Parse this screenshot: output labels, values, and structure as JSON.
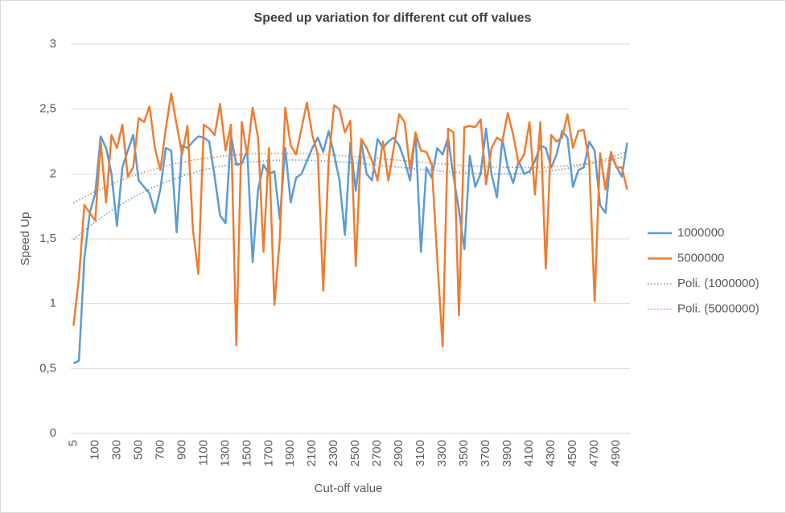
{
  "chart_data": {
    "type": "line",
    "title": "Speed up variation for different cut off values",
    "x_label": "Cut-off value",
    "y_label": "Speed Up",
    "categories": [
      "5",
      null,
      null,
      null,
      "100",
      null,
      null,
      null,
      "300",
      null,
      null,
      null,
      "500",
      null,
      null,
      null,
      "700",
      null,
      null,
      null,
      "900",
      null,
      null,
      null,
      "1100",
      null,
      null,
      null,
      "1300",
      null,
      null,
      null,
      "1500",
      null,
      null,
      null,
      "1700",
      null,
      null,
      null,
      "1900",
      null,
      null,
      null,
      "2100",
      null,
      null,
      null,
      "2300",
      null,
      null,
      null,
      "2500",
      null,
      null,
      null,
      "2700",
      null,
      null,
      null,
      "2900",
      null,
      null,
      null,
      "3100",
      null,
      null,
      null,
      "3300",
      null,
      null,
      null,
      "3500",
      null,
      null,
      null,
      "3700",
      null,
      null,
      null,
      "3900",
      null,
      null,
      null,
      "4100",
      null,
      null,
      null,
      "4300",
      null,
      null,
      null,
      "4500",
      null,
      null,
      null,
      "4700",
      null,
      null,
      null,
      "4900",
      null,
      null
    ],
    "series": [
      {
        "name": "1000000",
        "color": "#5b9bd5",
        "trendline": {
          "type": "polynomial",
          "order": 3,
          "name": "Poli. (1000000)"
        },
        "values": [
          0.54,
          0.56,
          1.35,
          1.7,
          1.85,
          2.29,
          2.2,
          2.0,
          1.6,
          2.05,
          2.18,
          2.3,
          1.95,
          1.9,
          1.85,
          1.7,
          1.88,
          2.2,
          2.18,
          1.55,
          2.22,
          2.2,
          2.25,
          2.29,
          2.28,
          2.25,
          1.98,
          1.68,
          1.62,
          2.3,
          2.07,
          2.08,
          2.18,
          1.32,
          1.88,
          2.07,
          2.0,
          2.02,
          1.65,
          2.2,
          1.78,
          1.97,
          2.0,
          2.1,
          2.2,
          2.28,
          2.17,
          2.33,
          2.15,
          1.95,
          1.53,
          2.24,
          1.87,
          2.25,
          2.0,
          1.95,
          2.27,
          2.2,
          2.25,
          2.28,
          2.22,
          2.1,
          1.95,
          2.32,
          1.4,
          2.05,
          1.97,
          2.2,
          2.15,
          2.28,
          1.98,
          1.72,
          1.42,
          2.14,
          1.9,
          2.0,
          2.35,
          2.0,
          1.82,
          2.27,
          2.05,
          1.93,
          2.1,
          2.0,
          2.02,
          2.1,
          2.22,
          2.2,
          2.05,
          2.15,
          2.33,
          2.28,
          1.9,
          2.03,
          2.05,
          2.25,
          2.18,
          1.76,
          1.7,
          2.15,
          2.06,
          1.98,
          2.24
        ]
      },
      {
        "name": "5000000",
        "color": "#ed7d31",
        "trendline": {
          "type": "polynomial",
          "order": 3,
          "name": "Poli. (5000000)"
        },
        "values": [
          0.83,
          1.2,
          1.76,
          1.7,
          1.64,
          2.25,
          1.78,
          2.3,
          2.2,
          2.38,
          1.98,
          2.05,
          2.43,
          2.4,
          2.52,
          2.2,
          2.03,
          2.35,
          2.62,
          2.38,
          2.15,
          2.37,
          1.57,
          1.23,
          2.38,
          2.35,
          2.3,
          2.54,
          2.18,
          2.38,
          0.68,
          2.4,
          2.15,
          2.51,
          2.28,
          1.4,
          2.2,
          0.99,
          1.5,
          2.51,
          2.22,
          2.15,
          2.35,
          2.55,
          2.3,
          2.15,
          1.1,
          2.1,
          2.53,
          2.5,
          2.32,
          2.41,
          1.29,
          2.27,
          2.2,
          2.1,
          1.95,
          2.25,
          1.95,
          2.2,
          2.46,
          2.4,
          2.03,
          2.32,
          2.18,
          2.17,
          2.07,
          1.35,
          0.67,
          2.35,
          2.32,
          0.91,
          2.36,
          2.37,
          2.36,
          2.42,
          1.92,
          2.2,
          2.28,
          2.25,
          2.47,
          2.3,
          2.08,
          2.15,
          2.4,
          1.84,
          2.4,
          1.27,
          2.3,
          2.25,
          2.28,
          2.46,
          2.2,
          2.33,
          2.34,
          2.1,
          1.02,
          2.16,
          1.88,
          2.17,
          2.05,
          2.05,
          1.88
        ]
      }
    ],
    "ylim": [
      0,
      3
    ],
    "yticks": [
      0,
      {
        "value": 0.5,
        "label": "0,5"
      },
      1,
      {
        "value": 1.5,
        "label": "1,5"
      },
      2,
      {
        "value": 2.5,
        "label": "2,5"
      },
      3
    ],
    "grid": true,
    "legend": "right"
  }
}
